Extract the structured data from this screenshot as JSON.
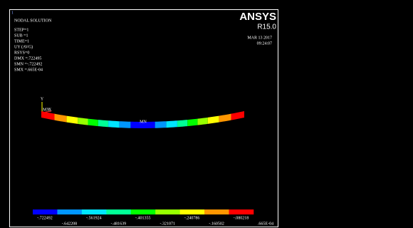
{
  "viewport_number": "1",
  "info": {
    "title": "NODAL SOLUTION",
    "lines": [
      "STEP=1",
      "SUB =1",
      "TIME=1",
      "UY       (AVG)",
      "RSYS=0",
      "DMX =.722495",
      "SMN =-.722492",
      "SMX =.665E-04"
    ]
  },
  "brand": {
    "name": "ANSYS",
    "version": "R15.0",
    "date": "MAR 13 2017",
    "time": "09:24:07"
  },
  "triad": {
    "y": "Y",
    "x": "X"
  },
  "markers": {
    "min": "MN",
    "max": "MX"
  },
  "legend": {
    "top": [
      "-.722492",
      "-.561924",
      "-.401355",
      "-.240786",
      "-.080218"
    ],
    "bottom": [
      "-.642208",
      "-.481639",
      "-.321071",
      "-.160502",
      ".665E-04"
    ]
  }
}
